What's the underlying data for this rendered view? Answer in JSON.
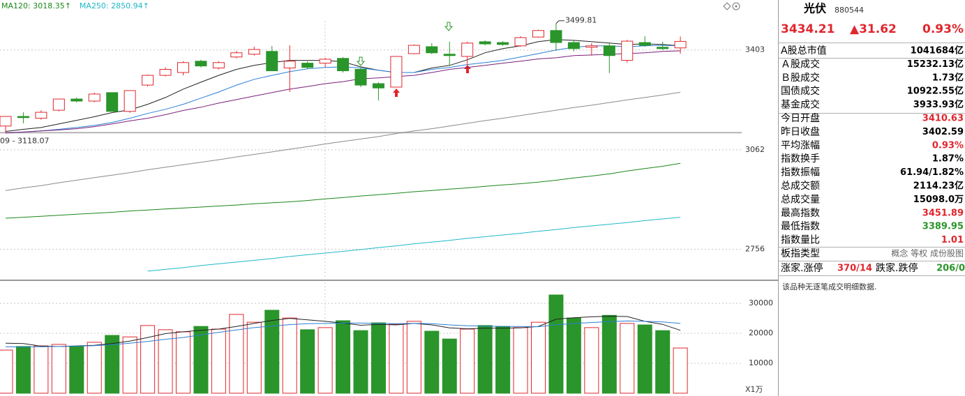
{
  "chart_data": [
    {
      "type": "candlestick",
      "log_scale": true,
      "grid": true,
      "ylim": [
        2671,
        3588
      ],
      "yticks": [
        3403,
        3062,
        2756
      ],
      "up_color": "#e0262e",
      "down_color": "#2a952a",
      "low_annotation": "09 - 3118.07",
      "open": [
        3140,
        3172,
        3166,
        3193,
        3231,
        3224,
        3253,
        3189,
        3279,
        3313,
        3323,
        3363,
        3339,
        3378,
        3388,
        3398,
        3339,
        3356,
        3356,
        3373,
        3334,
        3284,
        3272,
        3390,
        3415,
        3388,
        3380,
        3433,
        3430,
        3418,
        3450,
        3474,
        3430,
        3413,
        3418,
        3366,
        3430,
        3413,
        3410.63
      ],
      "high": [
        3172,
        3186,
        3193,
        3231,
        3236,
        3253,
        3253,
        3260,
        3316,
        3341,
        3363,
        3368,
        3363,
        3400,
        3415,
        3418,
        3420,
        3363,
        3375,
        3378,
        3344,
        3289,
        3380,
        3423,
        3428,
        3433,
        3433,
        3438,
        3435,
        3453,
        3477,
        3499.81,
        3440,
        3428,
        3428,
        3440,
        3453,
        3433,
        3451.89
      ],
      "low": [
        3118.07,
        3149,
        3161,
        3189,
        3220,
        3220,
        3189,
        3184,
        3274,
        3309,
        3313,
        3341,
        3334,
        3373,
        3383,
        3329,
        3255,
        3336,
        3341,
        3323,
        3272,
        3226,
        3272,
        3388,
        3388,
        3346,
        3346,
        3420,
        3418,
        3415,
        3448,
        3400,
        3398,
        3383,
        3321,
        3358,
        3415,
        3403,
        3389.95
      ],
      "close": [
        3172,
        3168,
        3186,
        3231,
        3224,
        3248,
        3189,
        3260,
        3313,
        3334,
        3358,
        3346,
        3358,
        3393,
        3405,
        3329,
        3363,
        3341,
        3370,
        3329,
        3279,
        3269,
        3380,
        3420,
        3393,
        3383,
        3428,
        3425,
        3423,
        3448,
        3474,
        3430,
        3408,
        3418,
        3383,
        3435,
        3420,
        3408,
        3434.21
      ],
      "series": [
        {
          "color": "#222222",
          "values": [
            3122,
            3129,
            3135,
            3147,
            3159,
            3171,
            3185,
            3194,
            3213,
            3236,
            3265,
            3289,
            3313,
            3334,
            3348,
            3358,
            3366,
            3366,
            3366,
            3361,
            3343,
            3331,
            3323,
            3323,
            3339,
            3348,
            3368,
            3393,
            3408,
            3418,
            3433,
            3441,
            3438,
            3433,
            3428,
            3423,
            3425,
            3423,
            3418
          ]
        },
        {
          "color": "#2a7fd4",
          "values": [
            3117,
            3120,
            3124,
            3129,
            3135,
            3142,
            3152,
            3166,
            3182,
            3196,
            3213,
            3234,
            3255,
            3279,
            3299,
            3313,
            3326,
            3336,
            3341,
            3343,
            3339,
            3331,
            3323,
            3323,
            3334,
            3341,
            3351,
            3358,
            3366,
            3378,
            3390,
            3403,
            3413,
            3418,
            3418,
            3415,
            3418,
            3420,
            3418
          ]
        },
        {
          "color": "#7a1f7a",
          "values": [
            3117,
            3120,
            3124,
            3127,
            3131,
            3138,
            3147,
            3157,
            3166,
            3178,
            3192,
            3203,
            3217,
            3229,
            3241,
            3253,
            3265,
            3274,
            3284,
            3291,
            3301,
            3304,
            3309,
            3313,
            3323,
            3334,
            3341,
            3348,
            3356,
            3363,
            3371,
            3375,
            3383,
            3385,
            3388,
            3390,
            3393,
            3398,
            3400
          ]
        },
        {
          "color": "#8a8a8a",
          "values": [
            2933,
            2941,
            2948,
            2957,
            2965,
            2973,
            2981,
            2989,
            2998,
            3006,
            3014,
            3022,
            3030,
            3039,
            3047,
            3055,
            3064,
            3072,
            3081,
            3089,
            3097,
            3105,
            3115,
            3124,
            3131,
            3140,
            3149,
            3158,
            3166,
            3175,
            3184,
            3193,
            3202,
            3210,
            3219,
            3228,
            3236,
            3245,
            3254
          ]
        },
        {
          "name": "MA120: 3018.35↑",
          "color": "#1b861b",
          "values": [
            2848,
            2851,
            2854,
            2857,
            2860,
            2863,
            2866,
            2870,
            2873,
            2876,
            2879,
            2882,
            2885,
            2888,
            2892,
            2895,
            2898,
            2902,
            2907,
            2911,
            2916,
            2920,
            2924,
            2929,
            2933,
            2937,
            2941,
            2946,
            2950,
            2954,
            2959,
            2965,
            2972,
            2978,
            2985,
            2994,
            3002,
            3009,
            3018.35
          ]
        },
        {
          "name": "MA250: 2850.94↑",
          "color": "#1fb8c8",
          "values": [
            null,
            null,
            null,
            null,
            null,
            null,
            null,
            null,
            2693,
            2698,
            2703,
            2709,
            2714,
            2719,
            2724,
            2729,
            2735,
            2740,
            2745,
            2750,
            2755,
            2761,
            2766,
            2772,
            2777,
            2782,
            2788,
            2793,
            2798,
            2803,
            2809,
            2814,
            2820,
            2825,
            2830,
            2835,
            2841,
            2846,
            2850.94
          ]
        }
      ]
    },
    {
      "type": "bar",
      "grid": true,
      "unit_label": "X1万",
      "ylim": [
        0,
        37000
      ],
      "yticks": [
        30000,
        20000,
        10000
      ],
      "values": [
        14400,
        15600,
        15800,
        16300,
        15600,
        17000,
        19300,
        18800,
        22600,
        21200,
        20500,
        22300,
        21400,
        26300,
        23700,
        27700,
        25100,
        21200,
        21900,
        24200,
        20900,
        23500,
        23000,
        24000,
        20700,
        18100,
        21400,
        22600,
        22300,
        21900,
        23700,
        32800,
        25100,
        21900,
        26000,
        23300,
        22800,
        20900,
        15098
      ],
      "series": [
        {
          "color": "#222222",
          "values": [
            16700,
            16600,
            15700,
            15600,
            15800,
            16000,
            16600,
            17400,
            18600,
            19900,
            20500,
            21000,
            21400,
            22300,
            23300,
            24300,
            25000,
            24500,
            24000,
            23400,
            22700,
            23000,
            22800,
            23300,
            22800,
            21800,
            21500,
            21700,
            21700,
            21800,
            22300,
            24700,
            25200,
            25500,
            25700,
            25600,
            24000,
            23000,
            21000
          ]
        },
        {
          "color": "#2a7fd4",
          "values": [
            15500,
            15400,
            15500,
            15600,
            15700,
            15900,
            16200,
            16700,
            17300,
            18000,
            18600,
            19500,
            20300,
            21100,
            21900,
            22400,
            22900,
            23200,
            23300,
            23400,
            23400,
            23300,
            23200,
            23300,
            23200,
            22800,
            22500,
            22400,
            22300,
            22300,
            22200,
            22800,
            23300,
            23600,
            23900,
            24100,
            24000,
            23800,
            23300
          ]
        }
      ]
    }
  ],
  "panel": {
    "name": "光伏",
    "code": "880544",
    "price": "3434.21",
    "change": "▲31.62",
    "change_pct": "0.93%",
    "quote_color": "#e0262e",
    "rows": [
      {
        "label": "A股总市值",
        "value": "1041684亿",
        "color": "#000000"
      },
      {
        "label": "Ａ股成交",
        "value": "15232.13亿",
        "color": "#000000"
      },
      {
        "label": "Ｂ股成交",
        "value": "1.73亿",
        "color": "#000000"
      },
      {
        "label": "国债成交",
        "value": "10922.55亿",
        "color": "#000000"
      },
      {
        "label": "基金成交",
        "value": "3933.93亿",
        "color": "#000000"
      },
      {
        "label": "今日开盘",
        "value": "3410.63",
        "color": "#e0262e"
      },
      {
        "label": "昨日收盘",
        "value": "3402.59",
        "color": "#000000"
      },
      {
        "label": "平均涨幅",
        "value": "0.93%",
        "color": "#e0262e"
      },
      {
        "label": "指数换手",
        "value": "1.87%",
        "color": "#000000"
      },
      {
        "label": "指数振幅",
        "value": "61.94/1.82%",
        "color": "#000000"
      },
      {
        "label": "总成交额",
        "value": "2114.23亿",
        "color": "#000000"
      },
      {
        "label": "总成交量",
        "value": "15098.0万",
        "color": "#000000"
      },
      {
        "label": "最高指数",
        "value": "3451.89",
        "color": "#e0262e"
      },
      {
        "label": "最低指数",
        "value": "3389.95",
        "color": "#2a952a"
      },
      {
        "label": "指数量比",
        "value": "1.01",
        "color": "#e0262e"
      },
      {
        "label": "板指类型",
        "value": "概念 等权 成份股图",
        "color": "#666666"
      }
    ],
    "breadth": {
      "up_label": "涨家.涨停",
      "up_value": "370/14",
      "up_color": "#e0262e",
      "down_label": "跌家.跌停",
      "down_value": "206/0",
      "down_color": "#2a952a"
    },
    "note": "该品种无逐笔成交明细数据."
  }
}
